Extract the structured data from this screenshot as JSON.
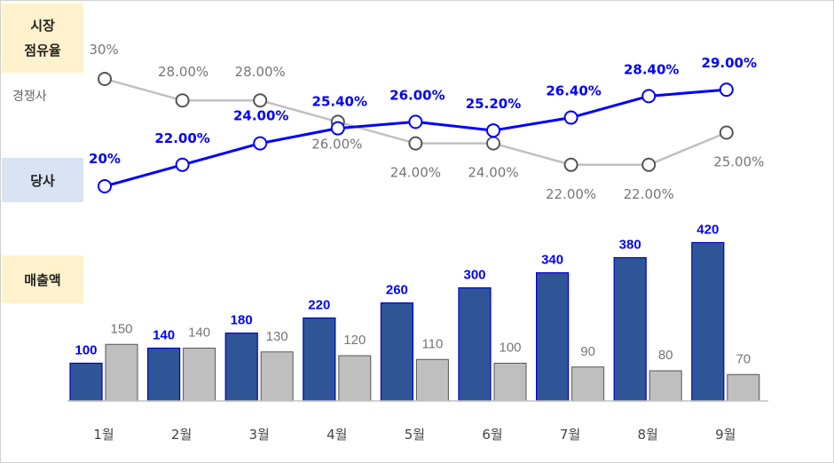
{
  "labels": {
    "share_line1": "시장",
    "share_line2": "점유율",
    "competitor": "경쟁사",
    "ours": "당사",
    "sales": "매출액"
  },
  "colors": {
    "ours": "#0000ff",
    "ours_bar": "#2f5597",
    "ours_bar_edge": "#0000cc",
    "competitor_line": "#c0c0c0",
    "competitor_bar": "#bfbfbf",
    "competitor_label": "#767676",
    "axis": "#bfbfbf"
  },
  "chart_data": [
    {
      "type": "line",
      "title": "시장 점유율",
      "categories": [
        "1월",
        "2월",
        "3월",
        "4월",
        "5월",
        "6월",
        "7월",
        "8월",
        "9월"
      ],
      "ylim": [
        0,
        32
      ],
      "series": [
        {
          "name": "경쟁사",
          "values": [
            30,
            28,
            28,
            26,
            24,
            24,
            22,
            22,
            25
          ],
          "labels": [
            "30%",
            "28.00%",
            "28.00%",
            "26.00%",
            "24.00%",
            "24.00%",
            "22.00%",
            "22.00%",
            "25.00%"
          ]
        },
        {
          "name": "당사",
          "values": [
            20,
            22,
            24,
            25.4,
            26,
            25.2,
            26.4,
            28.4,
            29
          ],
          "labels": [
            "20%",
            "22.00%",
            "24.00%",
            "25.40%",
            "26.00%",
            "25.20%",
            "26.40%",
            "28.40%",
            "29.00%"
          ]
        }
      ]
    },
    {
      "type": "bar",
      "title": "매출액",
      "categories": [
        "1월",
        "2월",
        "3월",
        "4월",
        "5월",
        "6월",
        "7월",
        "8월",
        "9월"
      ],
      "ylim": [
        0,
        450
      ],
      "series": [
        {
          "name": "당사",
          "values": [
            100,
            140,
            180,
            220,
            260,
            300,
            340,
            380,
            420
          ]
        },
        {
          "name": "경쟁사",
          "values": [
            150,
            140,
            130,
            120,
            110,
            100,
            90,
            80,
            70
          ]
        }
      ]
    }
  ]
}
